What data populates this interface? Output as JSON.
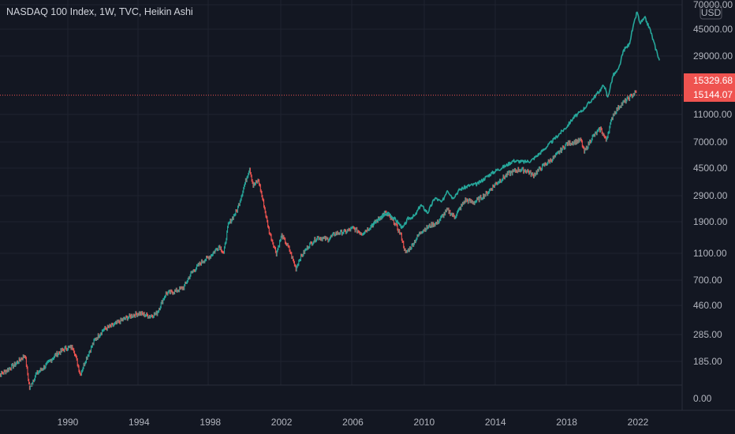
{
  "header": {
    "title": "NASDAQ 100 Index, 1W, TVC, Heikin Ashi",
    "currency": "USD"
  },
  "colors": {
    "background": "#131722",
    "grid": "#1f2330",
    "up": "#26a69a",
    "down": "#ef5350",
    "price_label_bg": "#ef5350",
    "axis_text": "#b2b5be"
  },
  "chart_data": {
    "type": "line",
    "title": "NASDAQ 100 Index, 1W, TVC, Heikin Ashi",
    "yscale": "log",
    "ylim": [
      100,
      70000
    ],
    "xlim": [
      1986,
      2024.3
    ],
    "grid": true,
    "x_tick_labels": [
      "1990",
      "1994",
      "1998",
      "2002",
      "2006",
      "2010",
      "2014",
      "2018",
      "2022"
    ],
    "x_ticks": [
      1990,
      1994,
      1998,
      2002,
      2006,
      2010,
      2014,
      2018,
      2022
    ],
    "y_tick_labels": [
      "70000.00",
      "45000.00",
      "29000.00",
      "11000.00",
      "7000.00",
      "4500.00",
      "2900.00",
      "1900.00",
      "1100.00",
      "700.00",
      "460.00",
      "285.00",
      "185.00",
      "0.00"
    ],
    "y_ticks": [
      70000,
      45000,
      29000,
      11000,
      7000,
      4500,
      2900,
      1900,
      1100,
      700,
      460,
      285,
      185,
      null
    ],
    "price_labels": [
      "15329.68",
      "15144.07"
    ],
    "price_line_value": 15144.07,
    "series": [
      {
        "style": "candles",
        "points": [
          [
            1986.0,
            145
          ],
          [
            1986.5,
            158
          ],
          [
            1987.0,
            175
          ],
          [
            1987.6,
            205
          ],
          [
            1987.85,
            120
          ],
          [
            1988.2,
            150
          ],
          [
            1988.8,
            175
          ],
          [
            1989.3,
            205
          ],
          [
            1989.9,
            230
          ],
          [
            1990.3,
            232
          ],
          [
            1990.7,
            150
          ],
          [
            1991.0,
            190
          ],
          [
            1991.5,
            260
          ],
          [
            1992.0,
            310
          ],
          [
            1992.6,
            335
          ],
          [
            1993.0,
            360
          ],
          [
            1993.6,
            390
          ],
          [
            1994.0,
            405
          ],
          [
            1994.6,
            385
          ],
          [
            1995.0,
            405
          ],
          [
            1995.5,
            560
          ],
          [
            1996.0,
            580
          ],
          [
            1996.5,
            620
          ],
          [
            1996.9,
            780
          ],
          [
            1997.5,
            950
          ],
          [
            1998.0,
            1050
          ],
          [
            1998.5,
            1250
          ],
          [
            1998.75,
            1100
          ],
          [
            1999.0,
            1800
          ],
          [
            1999.5,
            2300
          ],
          [
            1999.9,
            3400
          ],
          [
            2000.2,
            4500
          ],
          [
            2000.4,
            3400
          ],
          [
            2000.7,
            3700
          ],
          [
            2001.0,
            2500
          ],
          [
            2001.3,
            1600
          ],
          [
            2001.7,
            1100
          ],
          [
            2002.0,
            1500
          ],
          [
            2002.4,
            1200
          ],
          [
            2002.8,
            850
          ],
          [
            2003.0,
            1000
          ],
          [
            2003.5,
            1250
          ],
          [
            2004.0,
            1450
          ],
          [
            2004.6,
            1400
          ],
          [
            2005.0,
            1550
          ],
          [
            2005.6,
            1600
          ],
          [
            2006.0,
            1700
          ],
          [
            2006.5,
            1550
          ],
          [
            2007.0,
            1750
          ],
          [
            2007.8,
            2200
          ],
          [
            2008.3,
            1900
          ],
          [
            2008.7,
            1500
          ],
          [
            2008.95,
            1100
          ],
          [
            2009.3,
            1250
          ],
          [
            2009.8,
            1600
          ],
          [
            2010.4,
            1800
          ],
          [
            2010.7,
            1850
          ],
          [
            2011.3,
            2300
          ],
          [
            2011.7,
            2050
          ],
          [
            2012.3,
            2700
          ],
          [
            2012.8,
            2600
          ],
          [
            2013.5,
            3000
          ],
          [
            2014.0,
            3500
          ],
          [
            2014.7,
            4100
          ],
          [
            2015.3,
            4400
          ],
          [
            2015.8,
            4300
          ],
          [
            2016.1,
            4000
          ],
          [
            2016.7,
            4700
          ],
          [
            2017.3,
            5400
          ],
          [
            2018.0,
            6800
          ],
          [
            2018.8,
            7200
          ],
          [
            2018.98,
            5900
          ],
          [
            2019.4,
            7500
          ],
          [
            2019.9,
            8700
          ],
          [
            2020.2,
            7200
          ],
          [
            2020.6,
            11000
          ],
          [
            2021.0,
            12800
          ],
          [
            2021.5,
            14500
          ],
          [
            2021.9,
            16000
          ]
        ]
      },
      {
        "style": "line",
        "points": [
          [
            2007.0,
            1750
          ],
          [
            2007.5,
            2000
          ],
          [
            2008.0,
            2200
          ],
          [
            2008.5,
            1900
          ],
          [
            2008.8,
            1700
          ],
          [
            2009.1,
            2000
          ],
          [
            2009.5,
            2100
          ],
          [
            2009.8,
            2500
          ],
          [
            2010.2,
            2200
          ],
          [
            2010.6,
            2800
          ],
          [
            2011.0,
            2600
          ],
          [
            2011.3,
            3200
          ],
          [
            2011.6,
            2800
          ],
          [
            2012.0,
            3200
          ],
          [
            2012.5,
            3400
          ],
          [
            2013.0,
            3500
          ],
          [
            2013.6,
            4000
          ],
          [
            2014.0,
            4300
          ],
          [
            2014.6,
            4700
          ],
          [
            2015.0,
            5100
          ],
          [
            2015.6,
            5000
          ],
          [
            2016.0,
            5100
          ],
          [
            2016.5,
            5800
          ],
          [
            2017.0,
            6700
          ],
          [
            2017.5,
            7800
          ],
          [
            2018.0,
            9000
          ],
          [
            2018.4,
            10500
          ],
          [
            2018.8,
            11500
          ],
          [
            2019.3,
            13500
          ],
          [
            2019.8,
            16000
          ],
          [
            2020.1,
            18000
          ],
          [
            2020.3,
            14500
          ],
          [
            2020.6,
            21000
          ],
          [
            2020.9,
            23000
          ],
          [
            2021.2,
            32000
          ],
          [
            2021.5,
            35000
          ],
          [
            2021.75,
            48000
          ],
          [
            2021.95,
            62000
          ],
          [
            2022.1,
            50000
          ],
          [
            2022.4,
            55000
          ],
          [
            2022.7,
            44000
          ],
          [
            2022.95,
            34000
          ],
          [
            2023.1,
            30000
          ],
          [
            2023.2,
            27000
          ]
        ]
      }
    ]
  }
}
